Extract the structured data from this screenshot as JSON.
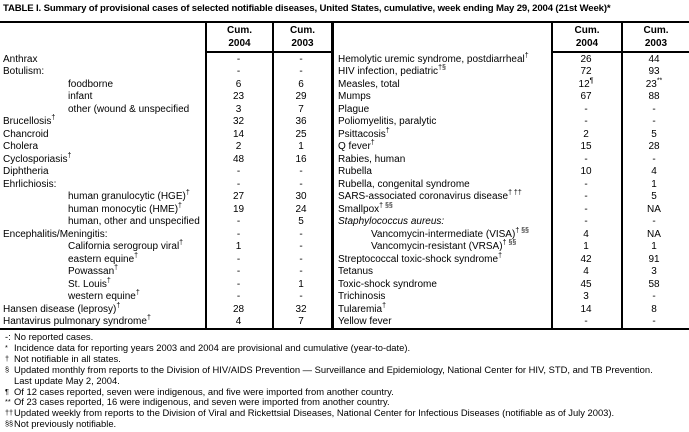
{
  "title": "TABLE I. Summary of provisional cases of selected notifiable diseases, United States, cumulative, week ending May 29, 2004 (21st Week)*",
  "header": {
    "cum": "Cum.",
    "y2004": "2004",
    "y2003": "2003"
  },
  "left_table": {
    "rows": [
      {
        "label": "Anthrax",
        "v04": "-",
        "v03": "-"
      },
      {
        "label": "Botulism:",
        "v04": "-",
        "v03": "-"
      },
      {
        "label": "foodborne",
        "indent": 1,
        "v04": "6",
        "v03": "6"
      },
      {
        "label": "infant",
        "indent": 1,
        "v04": "23",
        "v03": "29"
      },
      {
        "label": "other (wound & unspecified",
        "indent": 1,
        "v04": "3",
        "v03": "7"
      },
      {
        "label": "Brucellosis",
        "sup": "†",
        "v04": "32",
        "v03": "36"
      },
      {
        "label": "Chancroid",
        "v04": "14",
        "v03": "25"
      },
      {
        "label": "Cholera",
        "v04": "2",
        "v03": "1"
      },
      {
        "label": "Cyclosporiasis",
        "sup": "†",
        "v04": "48",
        "v03": "16"
      },
      {
        "label": "Diphtheria",
        "v04": "-",
        "v03": "-"
      },
      {
        "label": "Ehrlichiosis:",
        "v04": "-",
        "v03": "-"
      },
      {
        "label": "human granulocytic (HGE)",
        "sup": "†",
        "indent": 1,
        "v04": "27",
        "v03": "30"
      },
      {
        "label": "human monocytic (HME)",
        "sup": "†",
        "indent": 1,
        "v04": "19",
        "v03": "24"
      },
      {
        "label": "human, other and unspecified",
        "indent": 1,
        "v04": "-",
        "v03": "5"
      },
      {
        "label": "Encephalitis/Meningitis:",
        "v04": "-",
        "v03": "-"
      },
      {
        "label": "California serogroup viral",
        "sup": "†",
        "indent": 1,
        "v04": "1",
        "v03": "-"
      },
      {
        "label": "eastern equine",
        "sup": "†",
        "indent": 1,
        "v04": "-",
        "v03": "-"
      },
      {
        "label": "Powassan",
        "sup": "†",
        "indent": 1,
        "v04": "-",
        "v03": "-"
      },
      {
        "label": "St. Louis",
        "sup": "†",
        "indent": 1,
        "v04": "-",
        "v03": "1"
      },
      {
        "label": "western equine",
        "sup": "†",
        "indent": 1,
        "v04": "-",
        "v03": "-"
      },
      {
        "label": "Hansen disease (leprosy)",
        "sup": "†",
        "v04": "28",
        "v03": "32"
      },
      {
        "label": "Hantavirus pulmonary syndrome",
        "sup": "†",
        "v04": "4",
        "v03": "7"
      }
    ]
  },
  "right_table": {
    "rows": [
      {
        "label": "Hemolytic uremic syndrome, postdiarrheal",
        "sup": "†",
        "v04": "26",
        "v03": "44"
      },
      {
        "label": "HIV infection, pediatric",
        "sup": "†§",
        "v04": "72",
        "v03": "93"
      },
      {
        "label": "Measles, total",
        "v04": "12",
        "v04_sup": "¶",
        "v03": "23",
        "v03_sup": "**"
      },
      {
        "label": "Mumps",
        "v04": "67",
        "v03": "88"
      },
      {
        "label": "Plague",
        "v04": "-",
        "v03": "-"
      },
      {
        "label": "Poliomyelitis, paralytic",
        "v04": "-",
        "v03": "-"
      },
      {
        "label": "Psittacosis",
        "sup": "†",
        "v04": "2",
        "v03": "5"
      },
      {
        "label": "Q fever",
        "sup": "†",
        "v04": "15",
        "v03": "28"
      },
      {
        "label": "Rabies, human",
        "v04": "-",
        "v03": "-"
      },
      {
        "label": "Rubella",
        "v04": "10",
        "v03": "4"
      },
      {
        "label": "Rubella, congenital syndrome",
        "v04": "-",
        "v03": "1"
      },
      {
        "label": "SARS-associated coronavirus disease",
        "sup": "† ††",
        "v04": "-",
        "v03": "5"
      },
      {
        "label": "Smallpox",
        "sup": "† §§",
        "v04": "-",
        "v03": "NA"
      },
      {
        "label": "Staphylococcus aureus:",
        "italic": true,
        "v04": "-",
        "v03": "-"
      },
      {
        "label": "Vancomycin-intermediate (VISA)",
        "sup": "† §§",
        "indent": 1,
        "v04": "4",
        "v03": "NA"
      },
      {
        "label": "Vancomycin-resistant (VRSA)",
        "sup": "† §§",
        "indent": 1,
        "v04": "1",
        "v03": "1"
      },
      {
        "label": "Streptococcal toxic-shock syndrome",
        "sup": "†",
        "v04": "42",
        "v03": "91"
      },
      {
        "label": "Tetanus",
        "v04": "4",
        "v03": "3"
      },
      {
        "label": "Toxic-shock syndrome",
        "v04": "45",
        "v03": "58"
      },
      {
        "label": "Trichinosis",
        "v04": "3",
        "v03": "-"
      },
      {
        "label": "Tularemia",
        "sup": "†",
        "v04": "14",
        "v03": "8"
      },
      {
        "label": "Yellow fever",
        "v04": "-",
        "v03": "-"
      }
    ]
  },
  "footnotes": [
    {
      "marker": "-:",
      "sup": false,
      "text": "No reported cases."
    },
    {
      "marker": "*",
      "sup": true,
      "text": "Incidence data for reporting years 2003 and 2004 are provisional and cumulative (year-to-date)."
    },
    {
      "marker": "†",
      "sup": true,
      "text": "Not notifiable in all states."
    },
    {
      "marker": "§",
      "sup": true,
      "text": "Updated monthly from reports to the Division of HIV/AIDS Prevention — Surveillance and Epidemiology, National Center for HIV, STD, and TB Prevention."
    },
    {
      "marker": "",
      "sup": false,
      "text": "Last update May 2, 2004.",
      "cont": true
    },
    {
      "marker": "¶",
      "sup": true,
      "text": "Of 12 cases reported, seven were indigenous, and five were imported from another country."
    },
    {
      "marker": "**",
      "sup": true,
      "text": "Of 23 cases reported, 16 were indigenous, and seven were imported from another country."
    },
    {
      "marker": "††",
      "sup": true,
      "text": "Updated weekly from reports to the Division of Viral and Rickettsial Diseases, National Center for Infectious Diseases (notifiable as of July 2003)."
    },
    {
      "marker": "§§",
      "sup": true,
      "text": "Not previously notifiable."
    }
  ]
}
